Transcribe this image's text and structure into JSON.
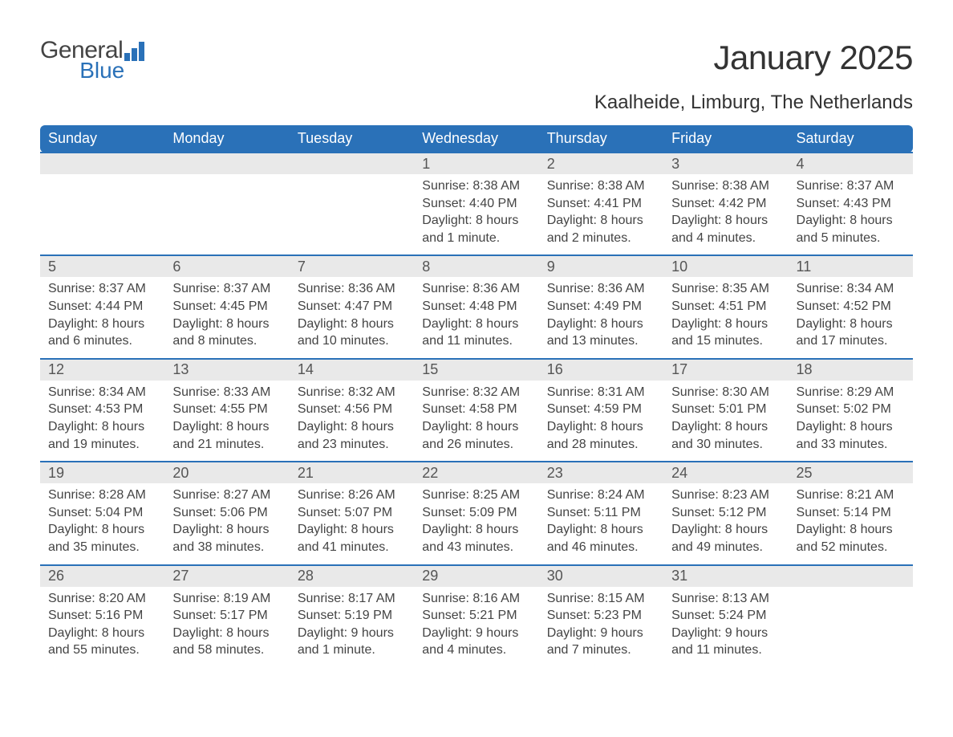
{
  "logo": {
    "general": "General",
    "blue": "Blue"
  },
  "title": "January 2025",
  "location": "Kaalheide, Limburg, The Netherlands",
  "colors": {
    "header_bg": "#2a71b8",
    "header_text": "#ffffff",
    "daynum_bg": "#e9e9e9",
    "text": "#444444",
    "row_border": "#2a71b8"
  },
  "weekdays": [
    "Sunday",
    "Monday",
    "Tuesday",
    "Wednesday",
    "Thursday",
    "Friday",
    "Saturday"
  ],
  "weeks": [
    [
      null,
      null,
      null,
      {
        "n": "1",
        "sunrise": "Sunrise: 8:38 AM",
        "sunset": "Sunset: 4:40 PM",
        "daylight": "Daylight: 8 hours and 1 minute."
      },
      {
        "n": "2",
        "sunrise": "Sunrise: 8:38 AM",
        "sunset": "Sunset: 4:41 PM",
        "daylight": "Daylight: 8 hours and 2 minutes."
      },
      {
        "n": "3",
        "sunrise": "Sunrise: 8:38 AM",
        "sunset": "Sunset: 4:42 PM",
        "daylight": "Daylight: 8 hours and 4 minutes."
      },
      {
        "n": "4",
        "sunrise": "Sunrise: 8:37 AM",
        "sunset": "Sunset: 4:43 PM",
        "daylight": "Daylight: 8 hours and 5 minutes."
      }
    ],
    [
      {
        "n": "5",
        "sunrise": "Sunrise: 8:37 AM",
        "sunset": "Sunset: 4:44 PM",
        "daylight": "Daylight: 8 hours and 6 minutes."
      },
      {
        "n": "6",
        "sunrise": "Sunrise: 8:37 AM",
        "sunset": "Sunset: 4:45 PM",
        "daylight": "Daylight: 8 hours and 8 minutes."
      },
      {
        "n": "7",
        "sunrise": "Sunrise: 8:36 AM",
        "sunset": "Sunset: 4:47 PM",
        "daylight": "Daylight: 8 hours and 10 minutes."
      },
      {
        "n": "8",
        "sunrise": "Sunrise: 8:36 AM",
        "sunset": "Sunset: 4:48 PM",
        "daylight": "Daylight: 8 hours and 11 minutes."
      },
      {
        "n": "9",
        "sunrise": "Sunrise: 8:36 AM",
        "sunset": "Sunset: 4:49 PM",
        "daylight": "Daylight: 8 hours and 13 minutes."
      },
      {
        "n": "10",
        "sunrise": "Sunrise: 8:35 AM",
        "sunset": "Sunset: 4:51 PM",
        "daylight": "Daylight: 8 hours and 15 minutes."
      },
      {
        "n": "11",
        "sunrise": "Sunrise: 8:34 AM",
        "sunset": "Sunset: 4:52 PM",
        "daylight": "Daylight: 8 hours and 17 minutes."
      }
    ],
    [
      {
        "n": "12",
        "sunrise": "Sunrise: 8:34 AM",
        "sunset": "Sunset: 4:53 PM",
        "daylight": "Daylight: 8 hours and 19 minutes."
      },
      {
        "n": "13",
        "sunrise": "Sunrise: 8:33 AM",
        "sunset": "Sunset: 4:55 PM",
        "daylight": "Daylight: 8 hours and 21 minutes."
      },
      {
        "n": "14",
        "sunrise": "Sunrise: 8:32 AM",
        "sunset": "Sunset: 4:56 PM",
        "daylight": "Daylight: 8 hours and 23 minutes."
      },
      {
        "n": "15",
        "sunrise": "Sunrise: 8:32 AM",
        "sunset": "Sunset: 4:58 PM",
        "daylight": "Daylight: 8 hours and 26 minutes."
      },
      {
        "n": "16",
        "sunrise": "Sunrise: 8:31 AM",
        "sunset": "Sunset: 4:59 PM",
        "daylight": "Daylight: 8 hours and 28 minutes."
      },
      {
        "n": "17",
        "sunrise": "Sunrise: 8:30 AM",
        "sunset": "Sunset: 5:01 PM",
        "daylight": "Daylight: 8 hours and 30 minutes."
      },
      {
        "n": "18",
        "sunrise": "Sunrise: 8:29 AM",
        "sunset": "Sunset: 5:02 PM",
        "daylight": "Daylight: 8 hours and 33 minutes."
      }
    ],
    [
      {
        "n": "19",
        "sunrise": "Sunrise: 8:28 AM",
        "sunset": "Sunset: 5:04 PM",
        "daylight": "Daylight: 8 hours and 35 minutes."
      },
      {
        "n": "20",
        "sunrise": "Sunrise: 8:27 AM",
        "sunset": "Sunset: 5:06 PM",
        "daylight": "Daylight: 8 hours and 38 minutes."
      },
      {
        "n": "21",
        "sunrise": "Sunrise: 8:26 AM",
        "sunset": "Sunset: 5:07 PM",
        "daylight": "Daylight: 8 hours and 41 minutes."
      },
      {
        "n": "22",
        "sunrise": "Sunrise: 8:25 AM",
        "sunset": "Sunset: 5:09 PM",
        "daylight": "Daylight: 8 hours and 43 minutes."
      },
      {
        "n": "23",
        "sunrise": "Sunrise: 8:24 AM",
        "sunset": "Sunset: 5:11 PM",
        "daylight": "Daylight: 8 hours and 46 minutes."
      },
      {
        "n": "24",
        "sunrise": "Sunrise: 8:23 AM",
        "sunset": "Sunset: 5:12 PM",
        "daylight": "Daylight: 8 hours and 49 minutes."
      },
      {
        "n": "25",
        "sunrise": "Sunrise: 8:21 AM",
        "sunset": "Sunset: 5:14 PM",
        "daylight": "Daylight: 8 hours and 52 minutes."
      }
    ],
    [
      {
        "n": "26",
        "sunrise": "Sunrise: 8:20 AM",
        "sunset": "Sunset: 5:16 PM",
        "daylight": "Daylight: 8 hours and 55 minutes."
      },
      {
        "n": "27",
        "sunrise": "Sunrise: 8:19 AM",
        "sunset": "Sunset: 5:17 PM",
        "daylight": "Daylight: 8 hours and 58 minutes."
      },
      {
        "n": "28",
        "sunrise": "Sunrise: 8:17 AM",
        "sunset": "Sunset: 5:19 PM",
        "daylight": "Daylight: 9 hours and 1 minute."
      },
      {
        "n": "29",
        "sunrise": "Sunrise: 8:16 AM",
        "sunset": "Sunset: 5:21 PM",
        "daylight": "Daylight: 9 hours and 4 minutes."
      },
      {
        "n": "30",
        "sunrise": "Sunrise: 8:15 AM",
        "sunset": "Sunset: 5:23 PM",
        "daylight": "Daylight: 9 hours and 7 minutes."
      },
      {
        "n": "31",
        "sunrise": "Sunrise: 8:13 AM",
        "sunset": "Sunset: 5:24 PM",
        "daylight": "Daylight: 9 hours and 11 minutes."
      },
      null
    ]
  ]
}
